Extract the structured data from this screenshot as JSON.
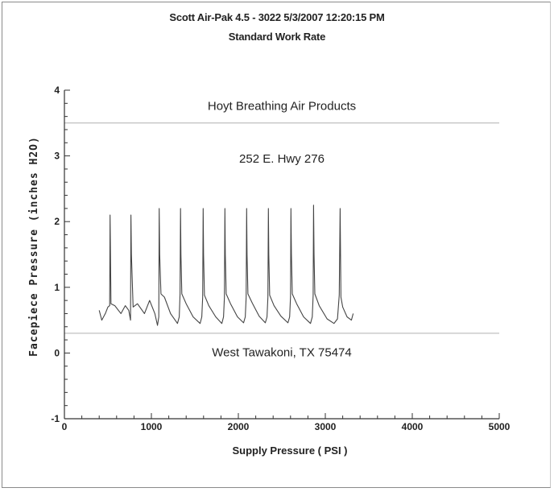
{
  "header": {
    "title": "Scott Air-Pak 4.5 - 3022     5/3/2007 12:20:15 PM",
    "subtitle": "Standard Work Rate"
  },
  "chart_data": {
    "type": "line",
    "title": "Scott Air-Pak 4.5 - 3022     5/3/2007 12:20:15 PM",
    "subtitle": "Standard Work Rate",
    "xlabel": "Supply Pressure ( PSI )",
    "ylabel": "Facepiece Pressure (inches H2O)",
    "xlim": [
      0,
      5000
    ],
    "ylim": [
      -1,
      4
    ],
    "xticks": [
      "0",
      "1000",
      "2000",
      "3000",
      "4000",
      "5000"
    ],
    "yticks": [
      "-1",
      "0",
      "1",
      "2",
      "3",
      "4"
    ],
    "grid": false,
    "reference_lines": [
      3.5,
      0.3
    ],
    "annotations": [
      {
        "text": "Hoyt Breathing Air Products",
        "x": 2500,
        "y": 3.7
      },
      {
        "text": "252 E. Hwy 276",
        "x": 2500,
        "y": 2.9
      },
      {
        "text": "West Tawakoni, TX  75474",
        "x": 2500,
        "y": -0.05
      }
    ],
    "series": [
      {
        "color": "#444444",
        "x": [
          400,
          430,
          470,
          500,
          520,
          525,
          530,
          535,
          580,
          650,
          700,
          740,
          760,
          765,
          770,
          790,
          840,
          920,
          980,
          1040,
          1070,
          1085,
          1090,
          1095,
          1110,
          1150,
          1220,
          1300,
          1320,
          1330,
          1335,
          1340,
          1350,
          1400,
          1480,
          1560,
          1580,
          1590,
          1595,
          1600,
          1610,
          1660,
          1740,
          1810,
          1830,
          1840,
          1845,
          1850,
          1860,
          1910,
          1990,
          2060,
          2080,
          2090,
          2095,
          2100,
          2110,
          2160,
          2240,
          2310,
          2330,
          2340,
          2345,
          2350,
          2360,
          2410,
          2490,
          2570,
          2590,
          2600,
          2605,
          2610,
          2620,
          2670,
          2750,
          2830,
          2850,
          2860,
          2865,
          2870,
          2880,
          2930,
          3020,
          3100,
          3140,
          3160,
          3170,
          3175,
          3180,
          3200,
          3250,
          3300,
          3320
        ],
        "y": [
          0.65,
          0.5,
          0.6,
          0.7,
          0.72,
          2.1,
          1.5,
          0.75,
          0.72,
          0.6,
          0.72,
          0.65,
          0.5,
          2.1,
          1.5,
          0.7,
          0.75,
          0.6,
          0.8,
          0.6,
          0.42,
          0.55,
          2.2,
          1.5,
          0.9,
          0.85,
          0.6,
          0.45,
          0.55,
          0.9,
          2.2,
          1.5,
          0.9,
          0.75,
          0.55,
          0.45,
          0.55,
          0.85,
          2.2,
          1.5,
          0.88,
          0.72,
          0.55,
          0.45,
          0.55,
          0.85,
          2.2,
          1.5,
          0.9,
          0.75,
          0.55,
          0.46,
          0.55,
          0.85,
          2.2,
          1.5,
          0.9,
          0.76,
          0.56,
          0.46,
          0.55,
          0.85,
          2.2,
          1.5,
          0.88,
          0.72,
          0.56,
          0.46,
          0.55,
          0.86,
          2.2,
          1.5,
          0.9,
          0.75,
          0.55,
          0.45,
          0.55,
          0.88,
          2.25,
          1.5,
          0.9,
          0.72,
          0.52,
          0.45,
          0.52,
          0.88,
          2.2,
          1.5,
          0.85,
          0.7,
          0.55,
          0.5,
          0.6
        ]
      }
    ]
  }
}
